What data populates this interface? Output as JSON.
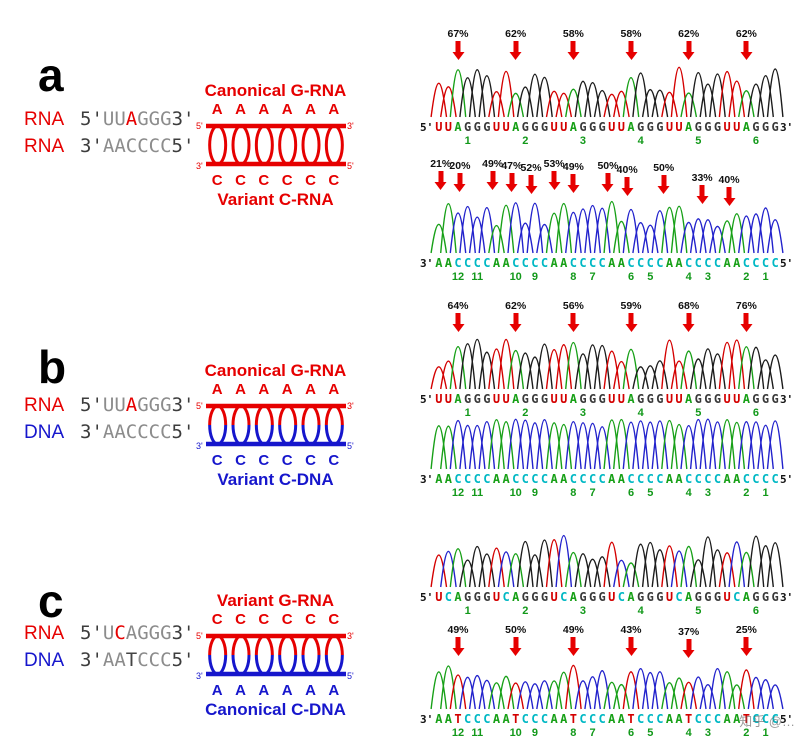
{
  "watermark": {
    "text": "知乎 @…"
  },
  "colors": {
    "red": "#e60000",
    "blue": "#1616cc",
    "grey_sequence": "#8c8c8c",
    "numbers_green": "#12991a",
    "letter": {
      "A": "#17a017",
      "C": "#00b8c4",
      "G": "#3a3a3a",
      "U": "#d40000",
      "T": "#d40000"
    },
    "trace": {
      "A": "#17a017",
      "C": "#2222cc",
      "G": "#1c1c1c",
      "U": "#d40000",
      "T": "#d40000"
    }
  },
  "panels": [
    {
      "letter": "a",
      "sequences": [
        {
          "label": "RNA",
          "label_color": "#e60000",
          "parts": [
            [
              "5'",
              "#3c3c3c"
            ],
            [
              "UU",
              "#8c8c8c"
            ],
            [
              "A",
              "#e60000"
            ],
            [
              "GGG",
              "#8c8c8c"
            ],
            [
              "3'",
              "#3c3c3c"
            ]
          ]
        },
        {
          "label": "RNA",
          "label_color": "#e60000",
          "parts": [
            [
              "3'",
              "#3c3c3c"
            ],
            [
              "AACCCC",
              "#8c8c8c"
            ],
            [
              "5'",
              "#3c3c3c"
            ]
          ]
        }
      ],
      "duplex": {
        "top_title": "Canonical G-RNA",
        "top_title_color": "#e60000",
        "bottom_title": "Variant C-RNA",
        "bottom_title_color": "#e60000",
        "top_letter": "A",
        "bottom_letter": "C",
        "top_color": "#e60000",
        "bottom_color": "#e60000",
        "ends": {
          "tl": "5'",
          "tr": "3'",
          "bl": "3'",
          "br": "5'"
        }
      },
      "chromatograms": [
        {
          "prefix": "5'",
          "suffix": "3'",
          "sequence": "UUAGGGUUAGGGUUAGGGUUAGGGUUAGGGUUAGGG",
          "ann_h": 46,
          "annotations": [
            {
              "t": "67%",
              "i": 2,
              "d": 0
            },
            {
              "t": "62%",
              "i": 8,
              "d": 0
            },
            {
              "t": "58%",
              "i": 14,
              "d": 0
            },
            {
              "t": "58%",
              "i": 20,
              "d": 0
            },
            {
              "t": "62%",
              "i": 26,
              "d": 0
            },
            {
              "t": "62%",
              "i": 32,
              "d": 0
            }
          ],
          "numbers": [
            {
              "t": "1",
              "i": 3
            },
            {
              "t": "2",
              "i": 9
            },
            {
              "t": "3",
              "i": 15
            },
            {
              "t": "4",
              "i": 21
            },
            {
              "t": "5",
              "i": 27
            },
            {
              "t": "6",
              "i": 33
            }
          ],
          "heights": {
            "min": 22,
            "max": 50,
            "seed": 3
          }
        },
        {
          "prefix": "3'",
          "suffix": "5'",
          "sequence": "AACCCCAACCCCAACCCCAACCCCAACCCCAACCCC",
          "ann_h": 52,
          "annotations": [
            {
              "t": "21%",
              "i": 0.2,
              "d": 0
            },
            {
              "t": "20%",
              "i": 2.2,
              "d": 2
            },
            {
              "t": "49%",
              "i": 5.6,
              "d": 0
            },
            {
              "t": "47%",
              "i": 7.6,
              "d": 2
            },
            {
              "t": "52%",
              "i": 9.6,
              "d": 4
            },
            {
              "t": "53%",
              "i": 12.0,
              "d": 0
            },
            {
              "t": "49%",
              "i": 14.0,
              "d": 3
            },
            {
              "t": "50%",
              "i": 17.6,
              "d": 2
            },
            {
              "t": "40%",
              "i": 19.6,
              "d": 6
            },
            {
              "t": "50%",
              "i": 23.4,
              "d": 4
            },
            {
              "t": "33%",
              "i": 27.4,
              "d": 14
            },
            {
              "t": "40%",
              "i": 30.2,
              "d": 16
            }
          ],
          "numbers": [
            {
              "t": "12",
              "i": 2
            },
            {
              "t": "11",
              "i": 4
            },
            {
              "t": "10",
              "i": 8
            },
            {
              "t": "9",
              "i": 10
            },
            {
              "t": "8",
              "i": 14
            },
            {
              "t": "7",
              "i": 16
            },
            {
              "t": "6",
              "i": 20
            },
            {
              "t": "5",
              "i": 22
            },
            {
              "t": "4",
              "i": 26
            },
            {
              "t": "3",
              "i": 28
            },
            {
              "t": "2",
              "i": 32
            },
            {
              "t": "1",
              "i": 34
            }
          ],
          "heights": {
            "min": 26,
            "max": 52,
            "seed": 7
          }
        }
      ]
    },
    {
      "letter": "b",
      "sequences": [
        {
          "label": "RNA",
          "label_color": "#e60000",
          "parts": [
            [
              "5'",
              "#3c3c3c"
            ],
            [
              "UU",
              "#8c8c8c"
            ],
            [
              "A",
              "#e60000"
            ],
            [
              "GGG",
              "#8c8c8c"
            ],
            [
              "3'",
              "#3c3c3c"
            ]
          ]
        },
        {
          "label": "DNA",
          "label_color": "#1616cc",
          "parts": [
            [
              "3'",
              "#3c3c3c"
            ],
            [
              "AACCCC",
              "#8c8c8c"
            ],
            [
              "5'",
              "#3c3c3c"
            ]
          ]
        }
      ],
      "duplex": {
        "top_title": "Canonical G-RNA",
        "top_title_color": "#e60000",
        "bottom_title": "Variant C-DNA",
        "bottom_title_color": "#1616cc",
        "top_letter": "A",
        "bottom_letter": "C",
        "top_color": "#e60000",
        "bottom_color": "#1616cc",
        "ends": {
          "tl": "5'",
          "tr": "3'",
          "bl": "3'",
          "br": "5'"
        }
      },
      "chromatograms": [
        {
          "prefix": "5'",
          "suffix": "3'",
          "sequence": "UUAGGGUUAGGGUUAGGGUUAGGGUUAGGGUUAGGG",
          "ann_h": 46,
          "annotations": [
            {
              "t": "64%",
              "i": 2,
              "d": 0
            },
            {
              "t": "62%",
              "i": 8,
              "d": 0
            },
            {
              "t": "56%",
              "i": 14,
              "d": 0
            },
            {
              "t": "59%",
              "i": 20,
              "d": 0
            },
            {
              "t": "68%",
              "i": 26,
              "d": 0
            },
            {
              "t": "76%",
              "i": 32,
              "d": 0
            }
          ],
          "numbers": [
            {
              "t": "1",
              "i": 3
            },
            {
              "t": "2",
              "i": 9
            },
            {
              "t": "3",
              "i": 15
            },
            {
              "t": "4",
              "i": 21
            },
            {
              "t": "5",
              "i": 27
            },
            {
              "t": "6",
              "i": 33
            }
          ],
          "heights": {
            "min": 22,
            "max": 50,
            "seed": 11
          }
        },
        {
          "prefix": "3'",
          "suffix": "5'",
          "sequence": "AACCCCAACCCCAACCCCAACCCCAACCCCAACCCC",
          "ann_h": 6,
          "annotations": [],
          "numbers": [
            {
              "t": "12",
              "i": 2
            },
            {
              "t": "11",
              "i": 4
            },
            {
              "t": "10",
              "i": 8
            },
            {
              "t": "9",
              "i": 10
            },
            {
              "t": "8",
              "i": 14
            },
            {
              "t": "7",
              "i": 16
            },
            {
              "t": "6",
              "i": 20
            },
            {
              "t": "5",
              "i": 22
            },
            {
              "t": "4",
              "i": 26
            },
            {
              "t": "3",
              "i": 28
            },
            {
              "t": "2",
              "i": 32
            },
            {
              "t": "1",
              "i": 34
            }
          ],
          "heights": {
            "min": 42,
            "max": 50,
            "seed": 5
          }
        }
      ]
    },
    {
      "letter": "c",
      "sequences": [
        {
          "label": "RNA",
          "label_color": "#e60000",
          "parts": [
            [
              "5'",
              "#3c3c3c"
            ],
            [
              "U",
              "#8c8c8c"
            ],
            [
              "C",
              "#e60000"
            ],
            [
              "AGGG",
              "#8c8c8c"
            ],
            [
              "3'",
              "#3c3c3c"
            ]
          ]
        },
        {
          "label": "DNA",
          "label_color": "#1616cc",
          "parts": [
            [
              "3'",
              "#3c3c3c"
            ],
            [
              "AA",
              "#8c8c8c"
            ],
            [
              "T",
              "#444444"
            ],
            [
              "CCC",
              "#8c8c8c"
            ],
            [
              "5'",
              "#3c3c3c"
            ]
          ]
        }
      ],
      "duplex": {
        "top_title": "Variant G-RNA",
        "top_title_color": "#e60000",
        "bottom_title": "Canonical C-DNA",
        "bottom_title_color": "#1616cc",
        "top_letter": "C",
        "bottom_letter": "A",
        "top_color": "#e60000",
        "bottom_color": "#1616cc",
        "ends": {
          "tl": "5'",
          "tr": "3'",
          "bl": "3'",
          "br": "5'"
        }
      },
      "chromatograms": [
        {
          "prefix": "5'",
          "suffix": "3'",
          "sequence": "UCAGGGUCAGGGUCAGGGUCAGGGUCAGGGUCAGGG",
          "ann_h": 6,
          "annotations": [],
          "numbers": [
            {
              "t": "1",
              "i": 3
            },
            {
              "t": "2",
              "i": 9
            },
            {
              "t": "3",
              "i": 15
            },
            {
              "t": "4",
              "i": 21
            },
            {
              "t": "5",
              "i": 27
            },
            {
              "t": "6",
              "i": 33
            }
          ],
          "heights": {
            "min": 24,
            "max": 52,
            "seed": 9
          }
        },
        {
          "prefix": "3'",
          "suffix": "5'",
          "sequence": "AATCCCAATCCCAATCCCAATCCCAATCCCAATCCC",
          "ann_h": 42,
          "annotations": [
            {
              "t": "49%",
              "i": 2,
              "d": 0
            },
            {
              "t": "50%",
              "i": 8,
              "d": 0
            },
            {
              "t": "49%",
              "i": 14,
              "d": 0
            },
            {
              "t": "43%",
              "i": 20,
              "d": 0
            },
            {
              "t": "37%",
              "i": 26,
              "d": 2
            },
            {
              "t": "25%",
              "i": 32,
              "d": 0
            }
          ],
          "numbers": [
            {
              "t": "12",
              "i": 2
            },
            {
              "t": "11",
              "i": 4
            },
            {
              "t": "10",
              "i": 8
            },
            {
              "t": "9",
              "i": 10
            },
            {
              "t": "8",
              "i": 14
            },
            {
              "t": "7",
              "i": 16
            },
            {
              "t": "6",
              "i": 20
            },
            {
              "t": "5",
              "i": 22
            },
            {
              "t": "4",
              "i": 26
            },
            {
              "t": "3",
              "i": 28
            },
            {
              "t": "2",
              "i": 32
            },
            {
              "t": "1",
              "i": 34
            }
          ],
          "heights": {
            "min": 24,
            "max": 44,
            "seed": 13
          }
        }
      ]
    }
  ]
}
